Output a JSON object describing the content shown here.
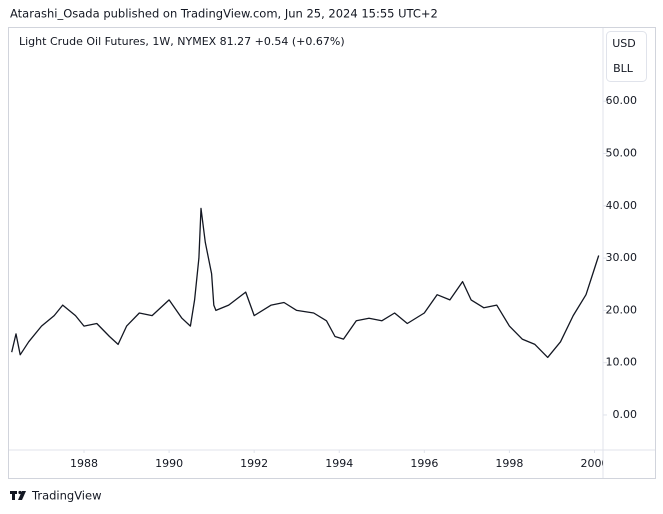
{
  "header": {
    "publisher": "Atarashi_Osada published on TradingView.com, Jun 25, 2024 15:55 UTC+2"
  },
  "footer": {
    "brand": "TradingView"
  },
  "buttons": [
    "USD",
    "BLL"
  ],
  "chart_data": {
    "type": "line",
    "title": "Light Crude Oil Futures, 1W, NYMEX  81.27  +0.54 (+0.67%)",
    "color": "#131722",
    "x": [
      1986.3,
      1986.4,
      1986.5,
      1986.7,
      1987.0,
      1987.3,
      1987.5,
      1987.8,
      1988.0,
      1988.3,
      1988.6,
      1988.8,
      1989.0,
      1989.3,
      1989.6,
      1990.0,
      1990.3,
      1990.5,
      1990.6,
      1990.7,
      1990.75,
      1990.85,
      1991.0,
      1991.05,
      1991.1,
      1991.4,
      1991.8,
      1992.0,
      1992.4,
      1992.7,
      1993.0,
      1993.4,
      1993.7,
      1993.9,
      1994.1,
      1994.4,
      1994.7,
      1995.0,
      1995.3,
      1995.6,
      1996.0,
      1996.3,
      1996.6,
      1996.9,
      1997.1,
      1997.4,
      1997.7,
      1998.0,
      1998.3,
      1998.6,
      1998.9,
      1999.0,
      1999.2,
      1999.5,
      1999.8,
      2000.0,
      2000.1
    ],
    "values": [
      12,
      15.5,
      11.5,
      14,
      17,
      19,
      21,
      19,
      17,
      17.5,
      15,
      13.5,
      17,
      19.5,
      19,
      22,
      18.5,
      17,
      22,
      30,
      39.5,
      33,
      27,
      21,
      20,
      21,
      23.5,
      19,
      21,
      21.5,
      20,
      19.5,
      18,
      15,
      14.5,
      18,
      18.5,
      18,
      19.5,
      17.5,
      19.5,
      23,
      22,
      25.5,
      22,
      20.5,
      21,
      17,
      14.5,
      13.5,
      11,
      12,
      14,
      19,
      23,
      28,
      30.5
    ],
    "xlim": [
      1986.26,
      2000.2
    ],
    "xticks": [
      1988,
      1990,
      1992,
      1994,
      1996,
      1998,
      2000
    ],
    "ylim": [
      -6.7,
      74
    ],
    "yticks": [
      {
        "value": 0,
        "label": "0.00"
      },
      {
        "value": 10,
        "label": "10.00"
      },
      {
        "value": 20,
        "label": "20.00"
      },
      {
        "value": 30,
        "label": "30.00"
      },
      {
        "value": 40,
        "label": "40.00"
      },
      {
        "value": 50,
        "label": "50.00"
      },
      {
        "value": 60,
        "label": "60.00"
      }
    ],
    "grid": false
  }
}
